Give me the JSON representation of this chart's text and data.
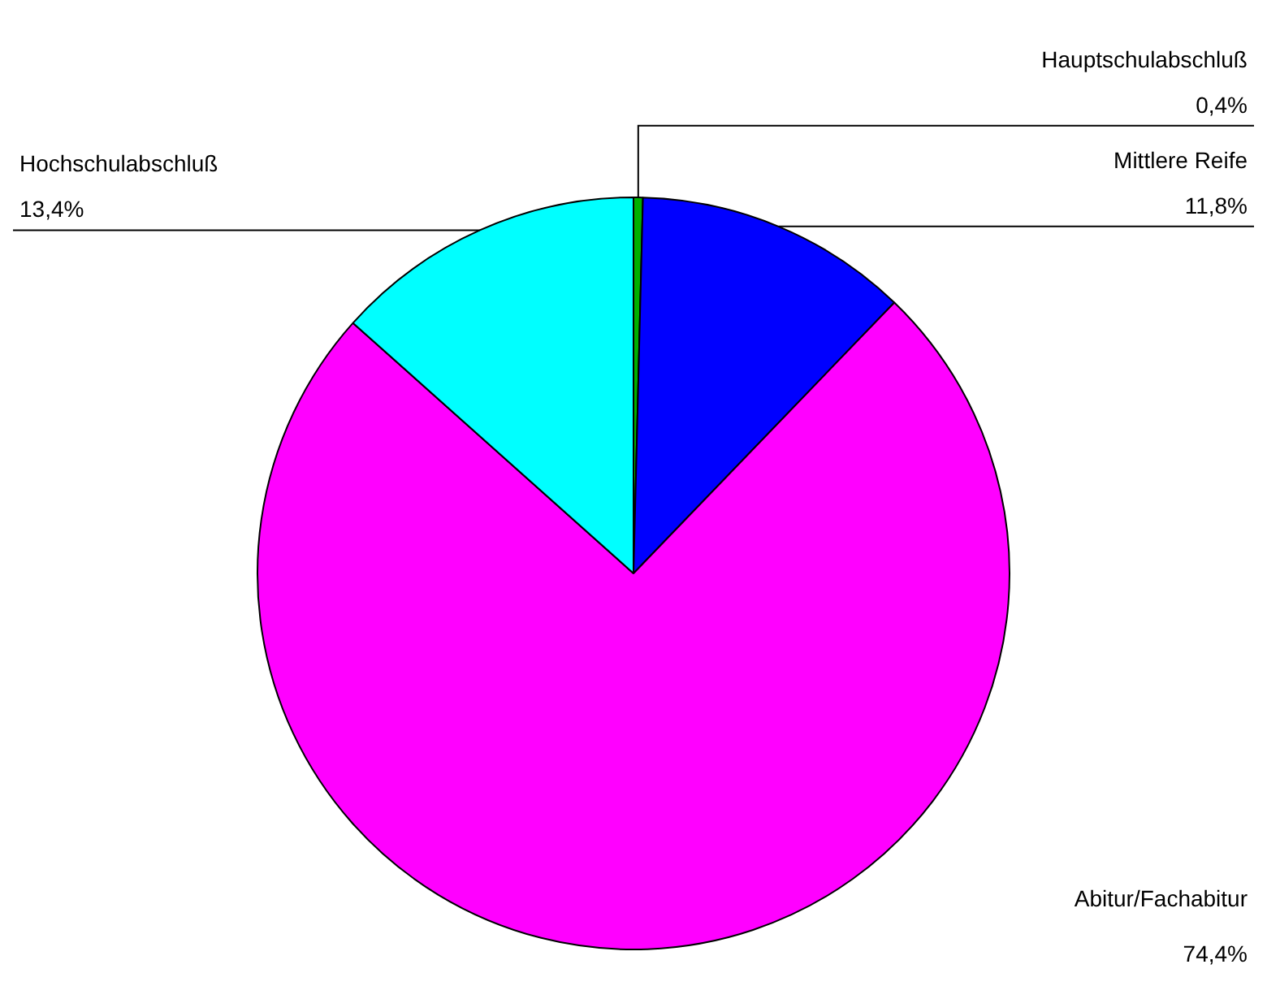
{
  "chart_data": {
    "type": "pie",
    "categories": [
      "Hauptschulabschluß",
      "Mittlere Reife",
      "Abitur/Fachabitur",
      "Hochschulabschluß"
    ],
    "values": [
      0.4,
      11.8,
      74.4,
      13.4
    ],
    "colors": [
      "#00b000",
      "#0000ff",
      "#ff00ff",
      "#00ffff"
    ],
    "value_labels": [
      "0,4%",
      "11,8%",
      "74,4%",
      "13,4%"
    ],
    "legend": false
  }
}
